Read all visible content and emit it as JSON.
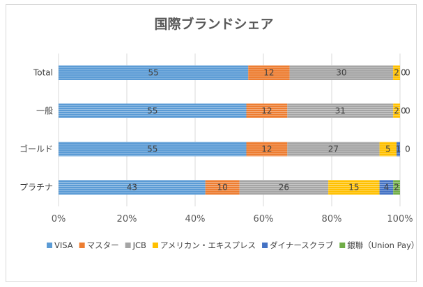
{
  "chart_data": {
    "type": "bar",
    "orientation": "horizontal",
    "stacked": "percent",
    "title": "国際ブランドシェア",
    "categories": [
      "Total",
      "一般",
      "ゴールド",
      "プラチナ"
    ],
    "series": [
      {
        "name": "VISA",
        "color": "#5B9BD5",
        "values": [
          55,
          55,
          55,
          43
        ]
      },
      {
        "name": "マスター",
        "color": "#ED7D31",
        "values": [
          12,
          12,
          12,
          10
        ]
      },
      {
        "name": "JCB",
        "color": "#A5A5A5",
        "values": [
          30,
          31,
          27,
          26
        ]
      },
      {
        "name": "アメリカン・エキスプレス",
        "color": "#FFC000",
        "values": [
          2,
          2,
          5,
          15
        ]
      },
      {
        "name": "ダイナースクラブ",
        "color": "#4472C4",
        "values": [
          0,
          0,
          1,
          4
        ]
      },
      {
        "name": "銀聯（Union Pay）",
        "color": "#70AD47",
        "values": [
          0,
          0,
          0,
          2
        ]
      }
    ],
    "xlim": [
      0,
      100
    ],
    "xticks": [
      "0%",
      "20%",
      "40%",
      "60%",
      "80%",
      "100%"
    ],
    "grid": true,
    "legend": "bottom",
    "xlabel": "",
    "ylabel": ""
  }
}
